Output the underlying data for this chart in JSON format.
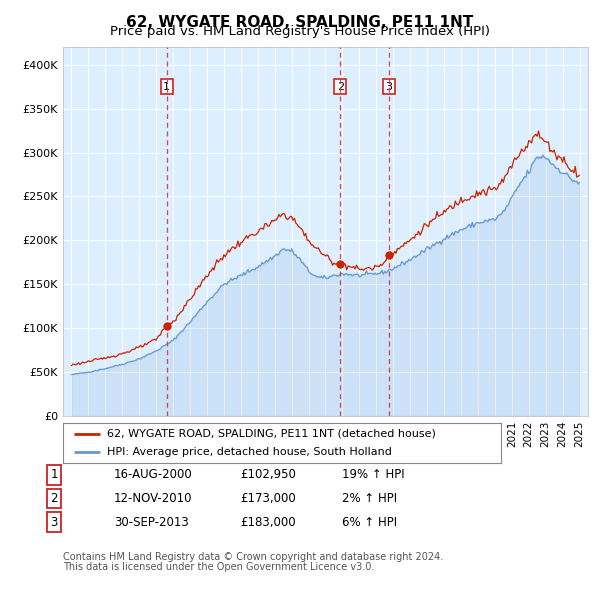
{
  "title": "62, WYGATE ROAD, SPALDING, PE11 1NT",
  "subtitle": "Price paid vs. HM Land Registry's House Price Index (HPI)",
  "legend_line1": "62, WYGATE ROAD, SPALDING, PE11 1NT (detached house)",
  "legend_line2": "HPI: Average price, detached house, South Holland",
  "footer1": "Contains HM Land Registry data © Crown copyright and database right 2024.",
  "footer2": "This data is licensed under the Open Government Licence v3.0.",
  "transactions": [
    {
      "num": 1,
      "date": "16-AUG-2000",
      "price": "£102,950",
      "pct": "19% ↑ HPI"
    },
    {
      "num": 2,
      "date": "12-NOV-2010",
      "price": "£173,000",
      "pct": "2% ↑ HPI"
    },
    {
      "num": 3,
      "date": "30-SEP-2013",
      "price": "£183,000",
      "pct": "6% ↑ HPI"
    }
  ],
  "transaction_dates_decimal": [
    2000.62,
    2010.87,
    2013.75
  ],
  "transaction_prices": [
    102950,
    173000,
    183000
  ],
  "hpi_color": "#6699cc",
  "price_color": "#cc2200",
  "dashed_color": "#dd3333",
  "background_color": "#ddeeff",
  "grid_color": "#ffffff",
  "ylim": [
    0,
    420000
  ],
  "yticks": [
    0,
    50000,
    100000,
    150000,
    200000,
    250000,
    300000,
    350000,
    400000
  ],
  "xlim_left": 1994.5,
  "xlim_right": 2025.5,
  "title_fontsize": 11,
  "subtitle_fontsize": 9.5,
  "axis_fontsize": 8,
  "legend_fontsize": 8,
  "table_fontsize": 8.5,
  "footer_fontsize": 7
}
